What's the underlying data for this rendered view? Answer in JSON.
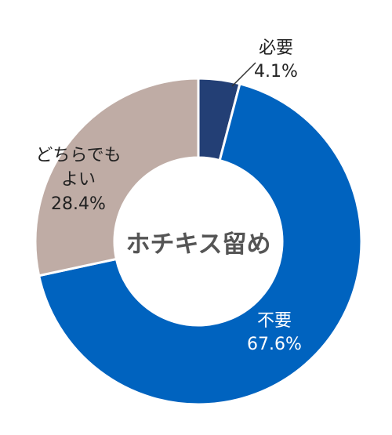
{
  "chart_data": {
    "type": "pie",
    "title": "ホチキス留め",
    "slices": [
      {
        "name_lines": [
          "必要"
        ],
        "value": 4.1,
        "value_label": "4.1%",
        "color": "#233f75"
      },
      {
        "name_lines": [
          "不要"
        ],
        "value": 67.6,
        "value_label": "67.6%",
        "color": "#0063bf"
      },
      {
        "name_lines": [
          "どちらでも",
          "よい"
        ],
        "value": 28.4,
        "value_label": "28.4%",
        "color": "#bfaca5"
      }
    ],
    "donut": true,
    "legend": "none"
  }
}
